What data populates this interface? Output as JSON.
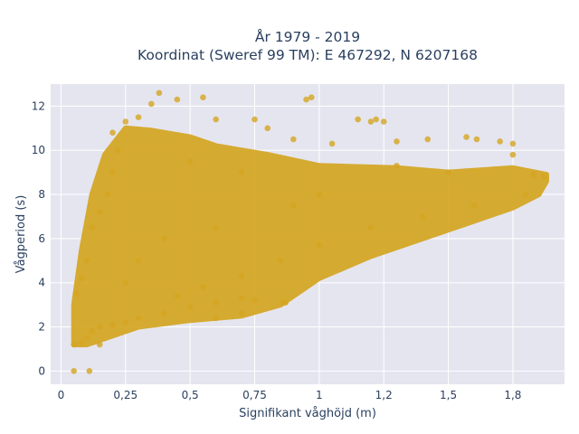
{
  "chart_data": {
    "type": "scatter",
    "title_line1": "År 1979 - 2019",
    "title_line2": "Koordinat (Sweref 99 TM): E 467292, N 6207168",
    "xlabel": "Signifikant våghöjd (m)",
    "ylabel": "Vågperiod (s)",
    "xlim": [
      -0.04,
      1.95
    ],
    "ylim": [
      -0.6,
      13
    ],
    "xticks": [
      0,
      0.25,
      0.5,
      0.75,
      1,
      1.25,
      1.5,
      1.75
    ],
    "xtick_labels": [
      "0",
      "0,25",
      "0,5",
      "0,75",
      "1",
      "1,2",
      "1,5",
      "1,8"
    ],
    "yticks": [
      0,
      2,
      4,
      6,
      8,
      10,
      12
    ],
    "ytick_labels": [
      "0",
      "2",
      "4",
      "6",
      "8",
      "10",
      "12"
    ],
    "grid": true,
    "marker_color": "#d4a520",
    "plot_background": "#e5e5f0",
    "series": [
      {
        "values_outline": "dense cloud; lower edge rises from ~1.2 s at 0.1 m to ~8 s at 1.85 m; upper edge ~11 s for low heights, ~8.5 s at 1.85 m",
        "points": [
          {
            "x": 0.05,
            "y": 0.0
          },
          {
            "x": 0.11,
            "y": 0.0
          },
          {
            "x": 0.05,
            "y": 1.2
          },
          {
            "x": 0.08,
            "y": 1.3
          },
          {
            "x": 0.1,
            "y": 1.5
          },
          {
            "x": 0.12,
            "y": 1.8
          },
          {
            "x": 0.15,
            "y": 2.0
          },
          {
            "x": 0.2,
            "y": 2.1
          },
          {
            "x": 0.25,
            "y": 2.2
          },
          {
            "x": 0.3,
            "y": 2.4
          },
          {
            "x": 0.4,
            "y": 2.6
          },
          {
            "x": 0.5,
            "y": 2.9
          },
          {
            "x": 0.6,
            "y": 3.1
          },
          {
            "x": 0.7,
            "y": 3.3
          },
          {
            "x": 0.75,
            "y": 3.2
          },
          {
            "x": 0.87,
            "y": 3.1
          },
          {
            "x": 0.6,
            "y": 2.4
          },
          {
            "x": 0.7,
            "y": 2.6
          },
          {
            "x": 0.06,
            "y": 3.5
          },
          {
            "x": 0.08,
            "y": 4.2
          },
          {
            "x": 0.1,
            "y": 5.0
          },
          {
            "x": 0.12,
            "y": 6.5
          },
          {
            "x": 0.15,
            "y": 7.2
          },
          {
            "x": 0.18,
            "y": 8.0
          },
          {
            "x": 0.2,
            "y": 9.0
          },
          {
            "x": 0.22,
            "y": 10.0
          },
          {
            "x": 0.2,
            "y": 10.8
          },
          {
            "x": 0.25,
            "y": 11.3
          },
          {
            "x": 0.3,
            "y": 11.5
          },
          {
            "x": 0.35,
            "y": 12.1
          },
          {
            "x": 0.38,
            "y": 12.6
          },
          {
            "x": 0.45,
            "y": 12.3
          },
          {
            "x": 0.55,
            "y": 12.4
          },
          {
            "x": 0.6,
            "y": 11.4
          },
          {
            "x": 0.75,
            "y": 11.4
          },
          {
            "x": 0.8,
            "y": 11.0
          },
          {
            "x": 0.95,
            "y": 12.3
          },
          {
            "x": 0.97,
            "y": 12.4
          },
          {
            "x": 1.15,
            "y": 11.4
          },
          {
            "x": 1.2,
            "y": 11.3
          },
          {
            "x": 1.22,
            "y": 11.4
          },
          {
            "x": 1.25,
            "y": 11.3
          },
          {
            "x": 0.9,
            "y": 10.5
          },
          {
            "x": 1.05,
            "y": 10.3
          },
          {
            "x": 1.3,
            "y": 10.4
          },
          {
            "x": 1.42,
            "y": 10.5
          },
          {
            "x": 1.57,
            "y": 10.6
          },
          {
            "x": 1.61,
            "y": 10.5
          },
          {
            "x": 1.7,
            "y": 10.4
          },
          {
            "x": 1.75,
            "y": 10.3
          },
          {
            "x": 1.75,
            "y": 9.8
          },
          {
            "x": 1.83,
            "y": 8.9
          },
          {
            "x": 1.87,
            "y": 8.8
          },
          {
            "x": 1.8,
            "y": 8.0
          },
          {
            "x": 1.6,
            "y": 7.5
          },
          {
            "x": 1.4,
            "y": 7.0
          },
          {
            "x": 1.2,
            "y": 6.5
          },
          {
            "x": 1.0,
            "y": 5.7
          },
          {
            "x": 0.85,
            "y": 5.0
          },
          {
            "x": 0.7,
            "y": 4.3
          },
          {
            "x": 0.55,
            "y": 3.8
          },
          {
            "x": 0.45,
            "y": 3.4
          },
          {
            "x": 1.0,
            "y": 8.0
          },
          {
            "x": 0.9,
            "y": 7.5
          },
          {
            "x": 0.6,
            "y": 6.5
          },
          {
            "x": 0.4,
            "y": 6.0
          },
          {
            "x": 0.3,
            "y": 5.0
          },
          {
            "x": 0.25,
            "y": 4.0
          },
          {
            "x": 0.5,
            "y": 9.5
          },
          {
            "x": 0.7,
            "y": 9.0
          },
          {
            "x": 1.3,
            "y": 9.3
          },
          {
            "x": 1.5,
            "y": 9.0
          },
          {
            "x": 0.86,
            "y": 3.1
          },
          {
            "x": 0.15,
            "y": 1.2
          }
        ]
      }
    ]
  }
}
